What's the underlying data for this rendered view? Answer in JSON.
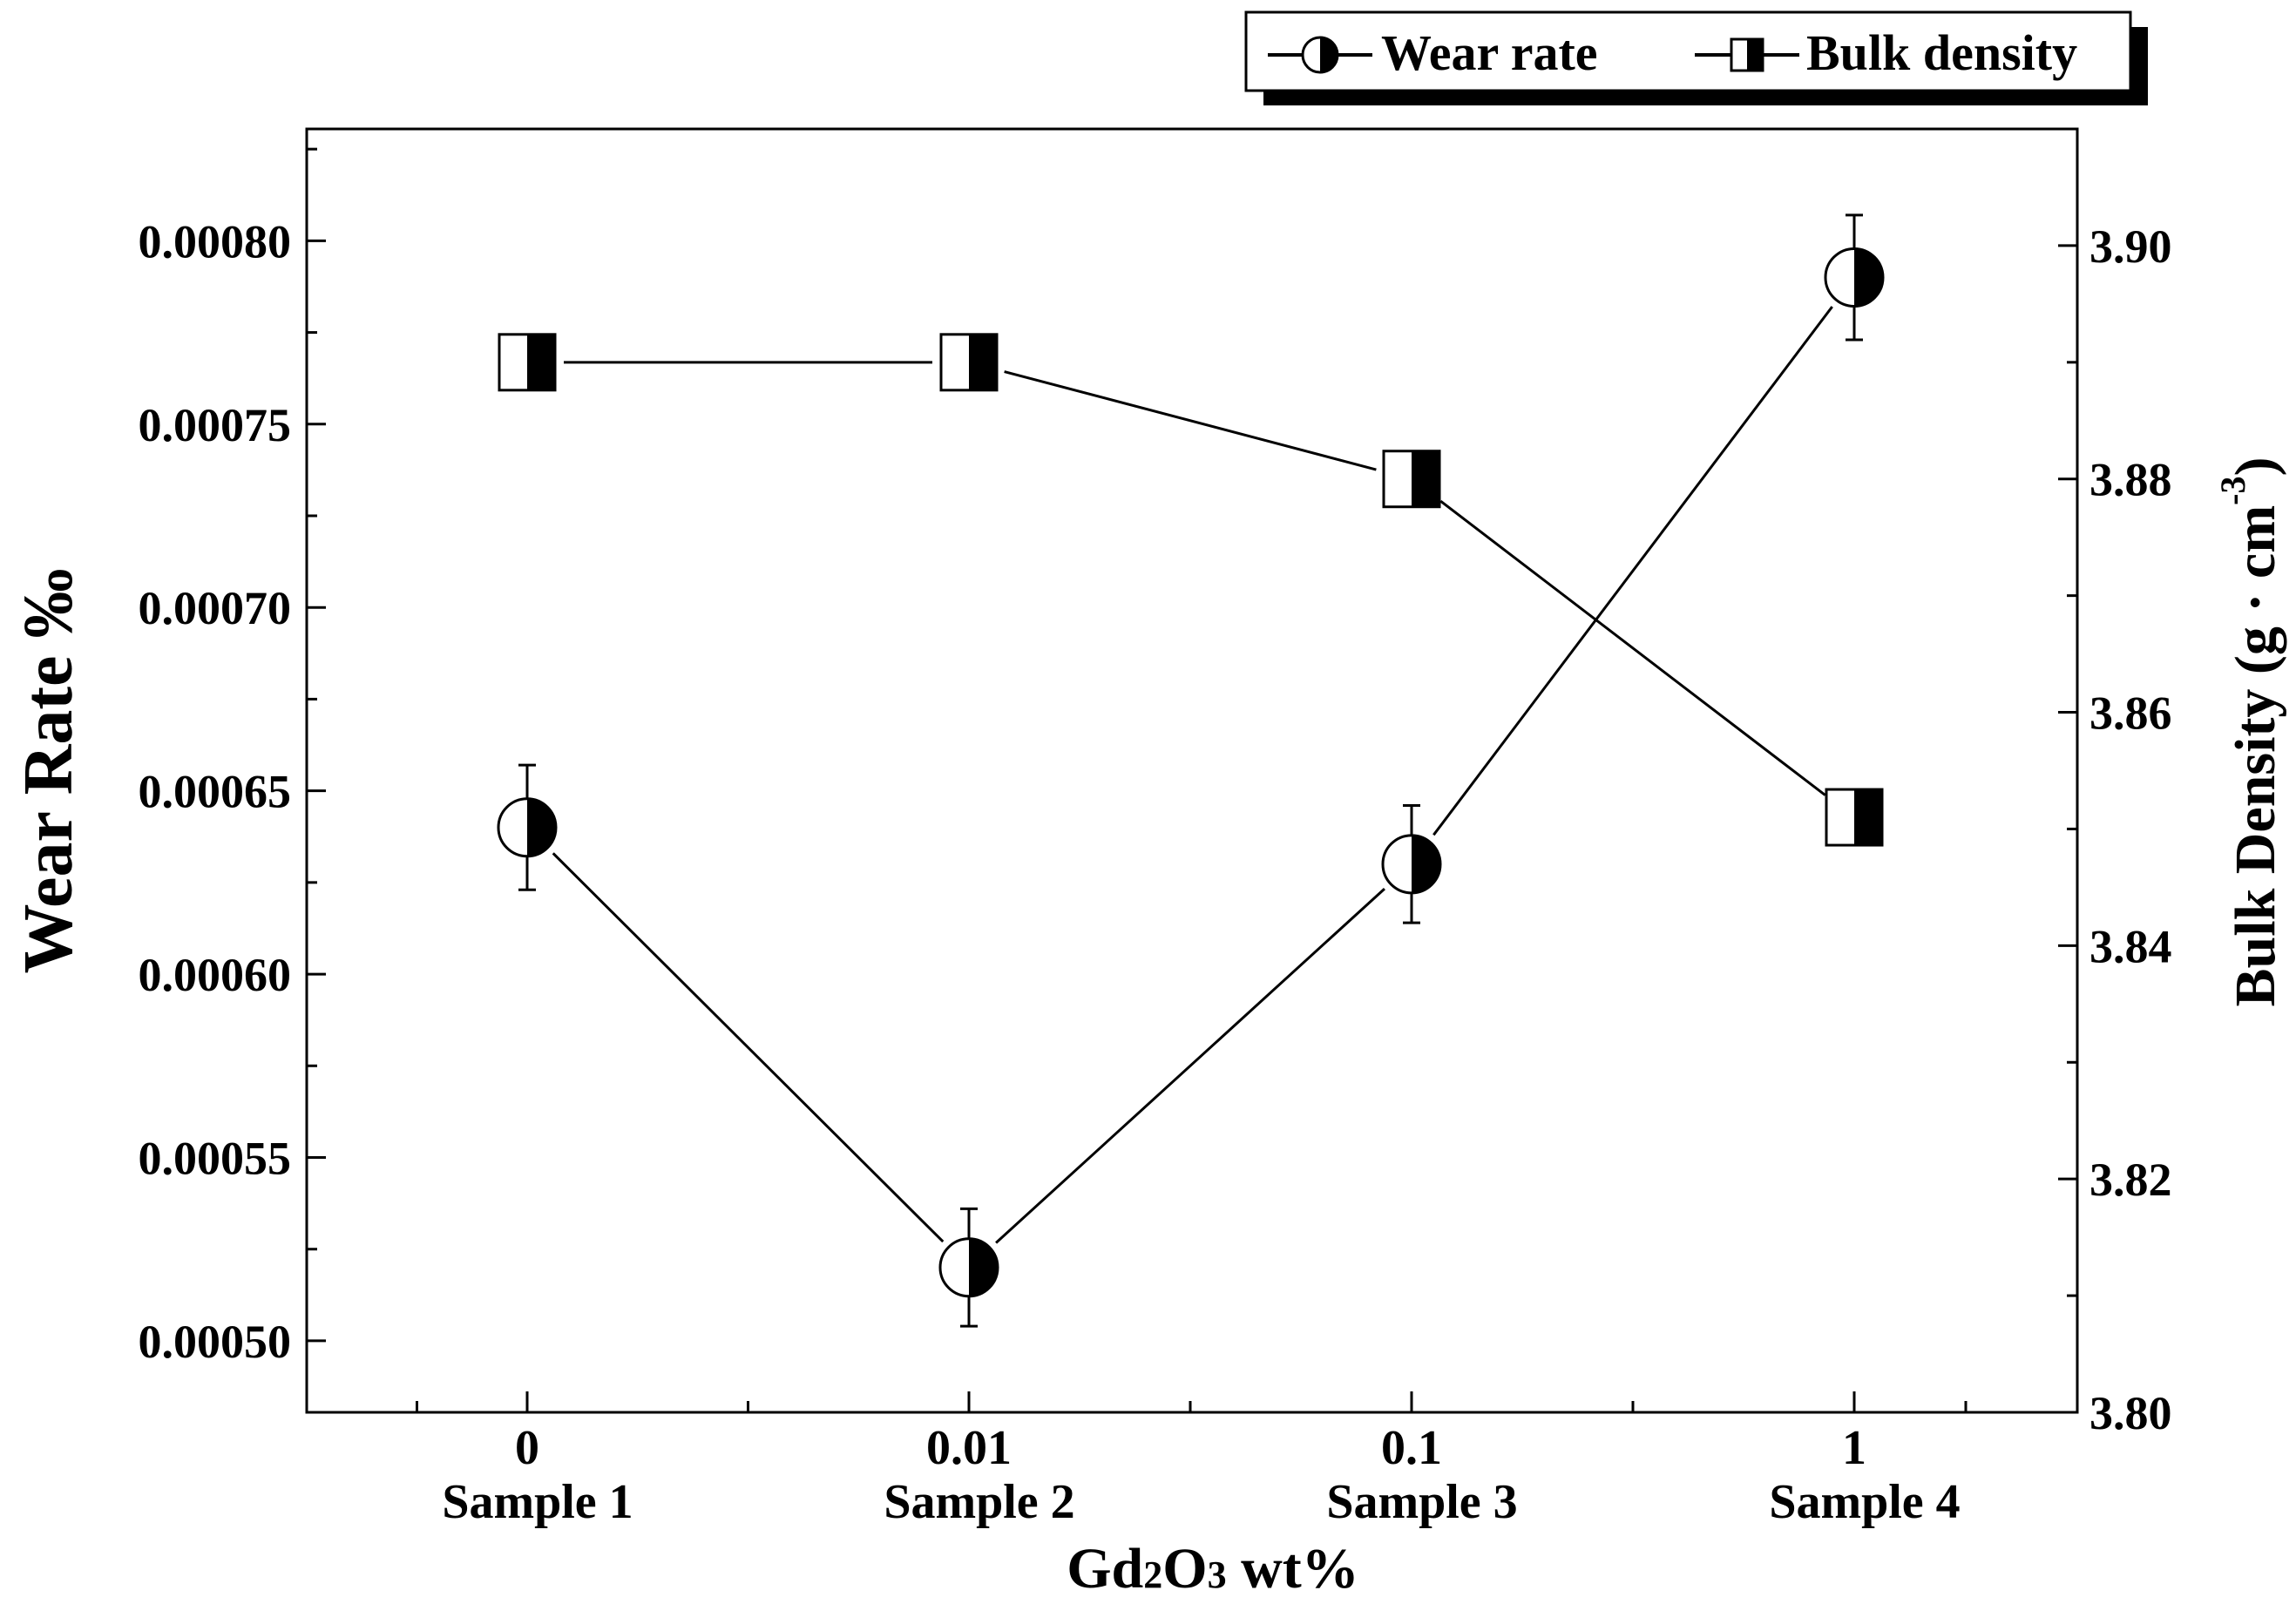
{
  "chart_data": {
    "type": "line",
    "categories": [
      {
        "value_label": "0",
        "sample_label": "Sample 1"
      },
      {
        "value_label": "0.01",
        "sample_label": "Sample 2"
      },
      {
        "value_label": "0.1",
        "sample_label": "Sample 3"
      },
      {
        "value_label": "1",
        "sample_label": "Sample 4"
      }
    ],
    "xlabel": {
      "prefix": "Gd",
      "sub1": "2",
      "mid": "O",
      "sub2": "3",
      "suffix": " wt%"
    },
    "ylabel_left": "Wear Rate ‰",
    "ylabel_right": {
      "text": "Bulk Density (g · cm",
      "sup": "-3",
      "close": ")"
    },
    "ylim_left": [
      0.0004805,
      0.0008305
    ],
    "ylim_right": [
      3.8,
      3.91
    ],
    "yticks_left": [
      "0.00050",
      "0.00055",
      "0.00060",
      "0.00065",
      "0.00070",
      "0.00075",
      "0.00080"
    ],
    "yticks_right": [
      "3.80",
      "3.82",
      "3.84",
      "3.86",
      "3.88",
      "3.90"
    ],
    "series": [
      {
        "name": "Wear rate",
        "axis": "left",
        "marker": "half-filled-circle",
        "values": [
          0.00064,
          0.00052,
          0.00063,
          0.00079
        ],
        "errors": [
          1.7e-05,
          1.6e-05,
          1.6e-05,
          1.7e-05
        ]
      },
      {
        "name": "Bulk density",
        "axis": "right",
        "marker": "half-filled-square",
        "values": [
          3.89,
          3.89,
          3.88,
          3.851
        ]
      }
    ],
    "legend": {
      "position": "top-right",
      "entries": [
        "Wear rate",
        "Bulk density"
      ]
    },
    "colors": {
      "line": "#000000",
      "fill": "#000000",
      "background": "#ffffff"
    }
  }
}
